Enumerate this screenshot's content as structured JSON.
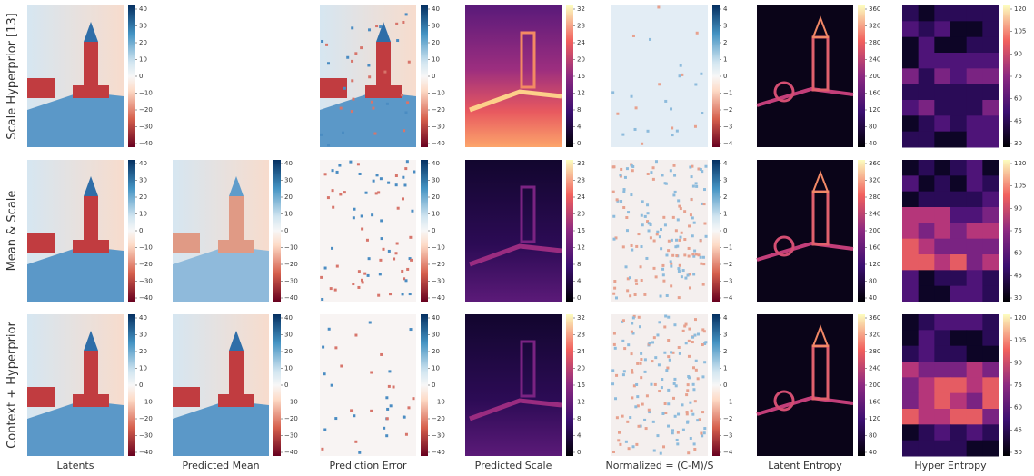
{
  "rows": [
    {
      "label": "Scale Hyperprior [13]",
      "missing": [
        "Predicted Mean"
      ]
    },
    {
      "label": "Mean & Scale",
      "missing": []
    },
    {
      "label": "Context + Hyperprior",
      "missing": []
    }
  ],
  "columns": [
    {
      "label": "Latents",
      "colormap": "RdBu",
      "ticks": [
        "40",
        "30",
        "20",
        "10",
        "0",
        "−10",
        "−20",
        "−30",
        "−40"
      ]
    },
    {
      "label": "Predicted Mean",
      "colormap": "RdBu",
      "ticks": [
        "40",
        "30",
        "20",
        "10",
        "0",
        "−10",
        "−20",
        "−30",
        "−40"
      ]
    },
    {
      "label": "Prediction Error",
      "colormap": "RdBu",
      "ticks": [
        "40",
        "30",
        "20",
        "10",
        "0",
        "−10",
        "−20",
        "−30",
        "−40"
      ]
    },
    {
      "label": "Predicted Scale",
      "colormap": "magma",
      "ticks": [
        "32",
        "28",
        "24",
        "20",
        "16",
        "12",
        "8",
        "4",
        "0"
      ]
    },
    {
      "label": "Normalized = (C-M)/S",
      "colormap": "RdBu",
      "ticks": [
        "4",
        "3",
        "2",
        "1",
        "0",
        "−1",
        "−2",
        "−3",
        "−4"
      ]
    },
    {
      "label": "Latent Entropy",
      "colormap": "magma",
      "ticks": [
        "360",
        "320",
        "280",
        "240",
        "200",
        "160",
        "120",
        "80",
        "40"
      ]
    },
    {
      "label": "Hyper Entropy",
      "colormap": "magma",
      "ticks": [
        "120",
        "105",
        "90",
        "75",
        "60",
        "45",
        "30"
      ]
    }
  ]
}
